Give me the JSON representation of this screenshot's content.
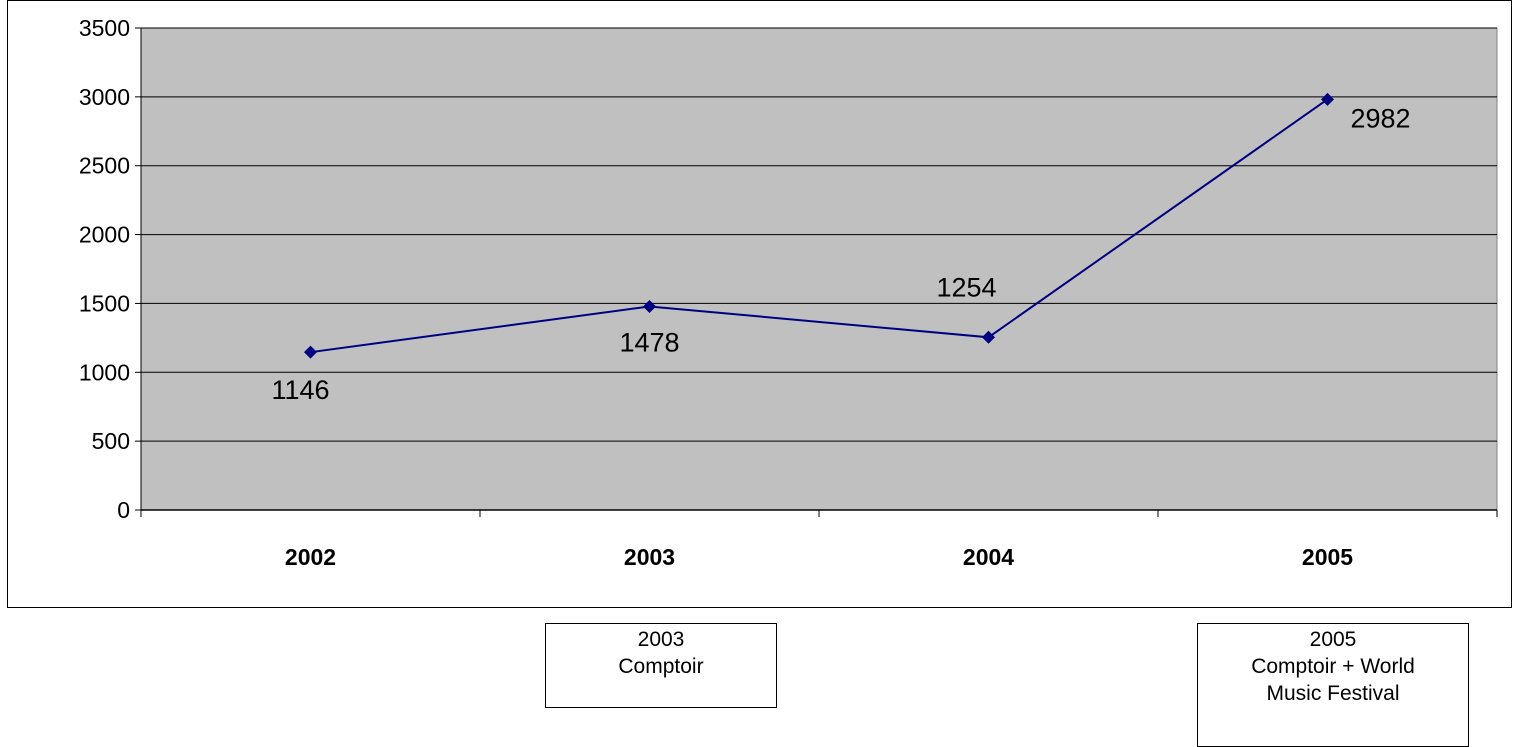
{
  "chart_data": {
    "type": "line",
    "title": "",
    "xlabel": "",
    "ylabel": "",
    "categories": [
      "2002",
      "2003",
      "2004",
      "2005"
    ],
    "series": [
      {
        "values": [
          1146,
          1478,
          1254,
          2982
        ],
        "color": "#000080"
      }
    ],
    "data_labels": [
      "1146",
      "1478",
      "1254",
      "2982"
    ],
    "ylim": [
      0,
      3500
    ],
    "yticks": [
      0,
      500,
      1000,
      1500,
      2000,
      2500,
      3000,
      3500
    ],
    "ytick_labels": [
      "0",
      "500",
      "1000",
      "1500",
      "2000",
      "2500",
      "3000",
      "3500"
    ],
    "grid": true,
    "plot_background": "#c0c0c0",
    "marker": "diamond"
  },
  "notes": [
    {
      "lines": [
        "2003",
        "Comptoir"
      ]
    },
    {
      "lines": [
        "2005",
        "Comptoir + World",
        "Music Festival"
      ]
    }
  ]
}
